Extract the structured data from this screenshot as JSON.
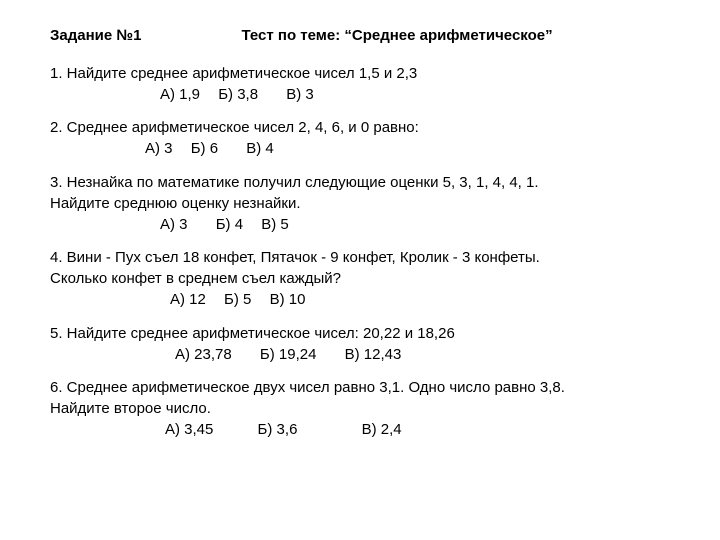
{
  "header": {
    "left": "Задание №1",
    "right": "Тест по теме: “Среднее арифметическое”"
  },
  "q1": {
    "text": "1. Найдите среднее арифметическое чисел 1,5 и 2,3",
    "a": "А) 1,9",
    "b": "Б) 3,8",
    "c": "В) 3"
  },
  "q2": {
    "text": "2. Среднее арифметическое чисел 2, 4, 6, и 0 равно:",
    "a": "А) 3",
    "b": "Б) 6",
    "c": "В) 4"
  },
  "q3": {
    "line1": "3. Незнайка по математике получил следующие оценки 5, 3, 1, 4, 4, 1.",
    "line2": "Найдите среднюю оценку незнайки.",
    "a": "А) 3",
    "b": "Б) 4",
    "c": "В) 5"
  },
  "q4": {
    "line1": "4. Вини - Пух съел 18 конфет, Пятачок - 9 конфет, Кролик - 3 конфеты.",
    "line2": "Сколько конфет в среднем съел каждый?",
    "a": "А) 12",
    "b": "Б) 5",
    "c": "В) 10"
  },
  "q5": {
    "text": "5. Найдите среднее арифметическое чисел: 20,22 и 18,26",
    "a": "А) 23,78",
    "b": "Б) 19,24",
    "c": "В) 12,43"
  },
  "q6": {
    "line1": "6. Среднее арифметическое двух чисел равно 3,1. Одно число равно 3,8.",
    "line2": "Найдите второе число.",
    "a": "А) 3,45",
    "b": "Б) 3,6",
    "c": "В) 2,4"
  }
}
